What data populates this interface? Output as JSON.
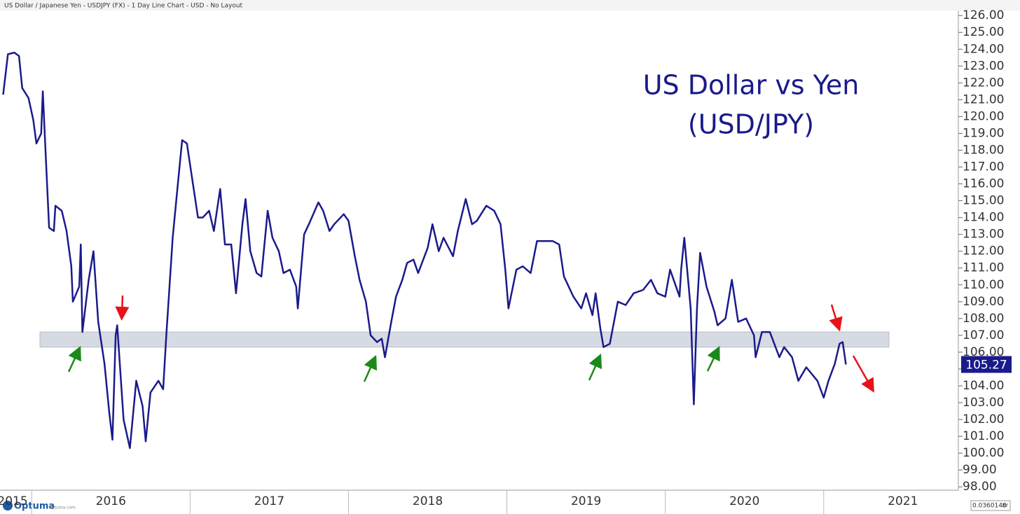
{
  "header": "US Dollar / Japanese Yen - USDJPY (FX) - 1 Day Line Chart - USD - No Layout",
  "brand": "Optuma",
  "brand_url": "optuma.com",
  "corner_value": "0.0360148",
  "corner_mode": "XY",
  "chart_data": {
    "type": "line",
    "title": [
      "US Dollar vs Yen",
      "(USD/JPY)"
    ],
    "x": [
      2015.82,
      2015.85,
      2015.89,
      2015.92,
      2015.94,
      2015.98,
      2016.01,
      2016.03,
      2016.06,
      2016.07,
      2016.09,
      2016.11,
      2016.14,
      2016.15,
      2016.19,
      2016.22,
      2016.25,
      2016.26,
      2016.3,
      2016.31,
      2016.32,
      2016.36,
      2016.39,
      2016.42,
      2016.46,
      2016.49,
      2016.51,
      2016.53,
      2016.54,
      2016.58,
      2016.62,
      2016.66,
      2016.7,
      2016.72,
      2016.75,
      2016.8,
      2016.83,
      2016.85,
      2016.89,
      2016.92,
      2016.95,
      2016.98,
      2017.01,
      2017.05,
      2017.08,
      2017.12,
      2017.15,
      2017.19,
      2017.22,
      2017.26,
      2017.29,
      2017.33,
      2017.35,
      2017.38,
      2017.42,
      2017.45,
      2017.49,
      2017.52,
      2017.56,
      2017.59,
      2017.63,
      2017.67,
      2017.68,
      2017.72,
      2017.75,
      2017.81,
      2017.84,
      2017.88,
      2017.91,
      2017.97,
      2018.0,
      2018.04,
      2018.07,
      2018.11,
      2018.14,
      2018.18,
      2018.21,
      2018.23,
      2018.27,
      2018.3,
      2018.34,
      2018.37,
      2018.41,
      2018.44,
      2018.5,
      2018.53,
      2018.57,
      2018.6,
      2018.66,
      2018.69,
      2018.74,
      2018.78,
      2018.81,
      2018.87,
      2018.92,
      2018.96,
      2018.99,
      2019.01,
      2019.06,
      2019.1,
      2019.15,
      2019.19,
      2019.24,
      2019.29,
      2019.33,
      2019.36,
      2019.42,
      2019.47,
      2019.5,
      2019.54,
      2019.56,
      2019.59,
      2019.61,
      2019.65,
      2019.7,
      2019.75,
      2019.8,
      2019.86,
      2019.91,
      2019.95,
      2020.0,
      2020.03,
      2020.09,
      2020.1,
      2020.12,
      2020.16,
      2020.18,
      2020.2,
      2020.22,
      2020.26,
      2020.31,
      2020.33,
      2020.38,
      2020.42,
      2020.46,
      2020.51,
      2020.56,
      2020.57,
      2020.61,
      2020.66,
      2020.72,
      2020.75,
      2020.8,
      2020.84,
      2020.89,
      2020.96,
      2021.0,
      2021.03,
      2021.07,
      2021.1,
      2021.12,
      2021.14
    ],
    "series": [
      {
        "name": "USDJPY",
        "color": "#1a1a8c",
        "values": [
          121.3,
          123.7,
          123.8,
          123.6,
          121.7,
          121.1,
          119.8,
          118.4,
          119.0,
          121.5,
          117.4,
          113.4,
          113.2,
          114.7,
          114.4,
          113.2,
          111.1,
          109.0,
          109.9,
          112.4,
          107.2,
          110.3,
          112.0,
          107.8,
          105.3,
          102.4,
          100.8,
          107.0,
          107.6,
          102.0,
          100.3,
          104.3,
          102.8,
          100.7,
          103.6,
          104.3,
          103.8,
          107.0,
          112.8,
          115.7,
          118.6,
          118.4,
          116.5,
          114.0,
          114.0,
          114.4,
          113.2,
          115.7,
          112.4,
          112.4,
          109.5,
          113.6,
          115.1,
          112.0,
          110.7,
          110.5,
          114.4,
          112.8,
          112.0,
          110.7,
          110.9,
          109.9,
          108.6,
          113.0,
          113.6,
          114.9,
          114.4,
          113.2,
          113.6,
          114.2,
          113.8,
          111.7,
          110.3,
          109.0,
          107.0,
          106.6,
          106.8,
          105.7,
          107.8,
          109.3,
          110.3,
          111.3,
          111.5,
          110.7,
          112.2,
          113.6,
          112.0,
          112.8,
          111.7,
          113.2,
          115.1,
          113.6,
          113.8,
          114.7,
          114.4,
          113.6,
          110.9,
          108.6,
          110.9,
          111.1,
          110.7,
          112.6,
          112.6,
          112.6,
          112.4,
          110.5,
          109.3,
          108.6,
          109.5,
          108.2,
          109.5,
          107.4,
          106.3,
          106.5,
          109.0,
          108.8,
          109.5,
          109.7,
          110.3,
          109.5,
          109.3,
          110.9,
          109.3,
          110.9,
          112.8,
          108.6,
          102.9,
          108.6,
          111.9,
          109.9,
          108.4,
          107.6,
          108.0,
          110.3,
          107.8,
          108.0,
          107.0,
          105.7,
          107.2,
          107.2,
          105.7,
          106.3,
          105.7,
          104.3,
          105.1,
          104.3,
          103.3,
          104.3,
          105.3,
          106.5,
          106.6,
          105.27
        ]
      }
    ],
    "band": [
      106.3,
      107.2
    ],
    "xlim": [
      2015.8,
      2021.85
    ],
    "xticks": [
      2015,
      2016,
      2017,
      2018,
      2019,
      2020,
      2021
    ],
    "ylim": [
      97.8,
      126.3
    ],
    "yticks": [
      {
        "value": 98,
        "label": "98.00"
      },
      {
        "value": 99,
        "label": "99.00"
      },
      {
        "value": 100,
        "label": "100.00"
      },
      {
        "value": 101,
        "label": "101.00"
      },
      {
        "value": 102,
        "label": "102.00"
      },
      {
        "value": 103,
        "label": "103.00"
      },
      {
        "value": 104,
        "label": "104.00"
      },
      {
        "value": 105,
        "label": "105.00"
      },
      {
        "value": 106,
        "label": "106.00"
      },
      {
        "value": 107,
        "label": "107.00"
      },
      {
        "value": 108,
        "label": "108.00"
      },
      {
        "value": 109,
        "label": "109.00"
      },
      {
        "value": 110,
        "label": "110.00"
      },
      {
        "value": 111,
        "label": "111.00"
      },
      {
        "value": 112,
        "label": "112.00"
      },
      {
        "value": 113,
        "label": "113.00"
      },
      {
        "value": 114,
        "label": "114.00"
      },
      {
        "value": 115,
        "label": "115.00"
      },
      {
        "value": 116,
        "label": "116.00"
      },
      {
        "value": 117,
        "label": "117.00"
      },
      {
        "value": 118,
        "label": "118.00"
      },
      {
        "value": 119,
        "label": "119.00"
      },
      {
        "value": 120,
        "label": "120.00"
      },
      {
        "value": 121,
        "label": "121.00"
      },
      {
        "value": 122,
        "label": "122.00"
      },
      {
        "value": 123,
        "label": "123.00"
      },
      {
        "value": 124,
        "label": "124.00"
      },
      {
        "value": 125,
        "label": "125.00"
      },
      {
        "value": 126,
        "label": "126.00"
      }
    ]
  }
}
